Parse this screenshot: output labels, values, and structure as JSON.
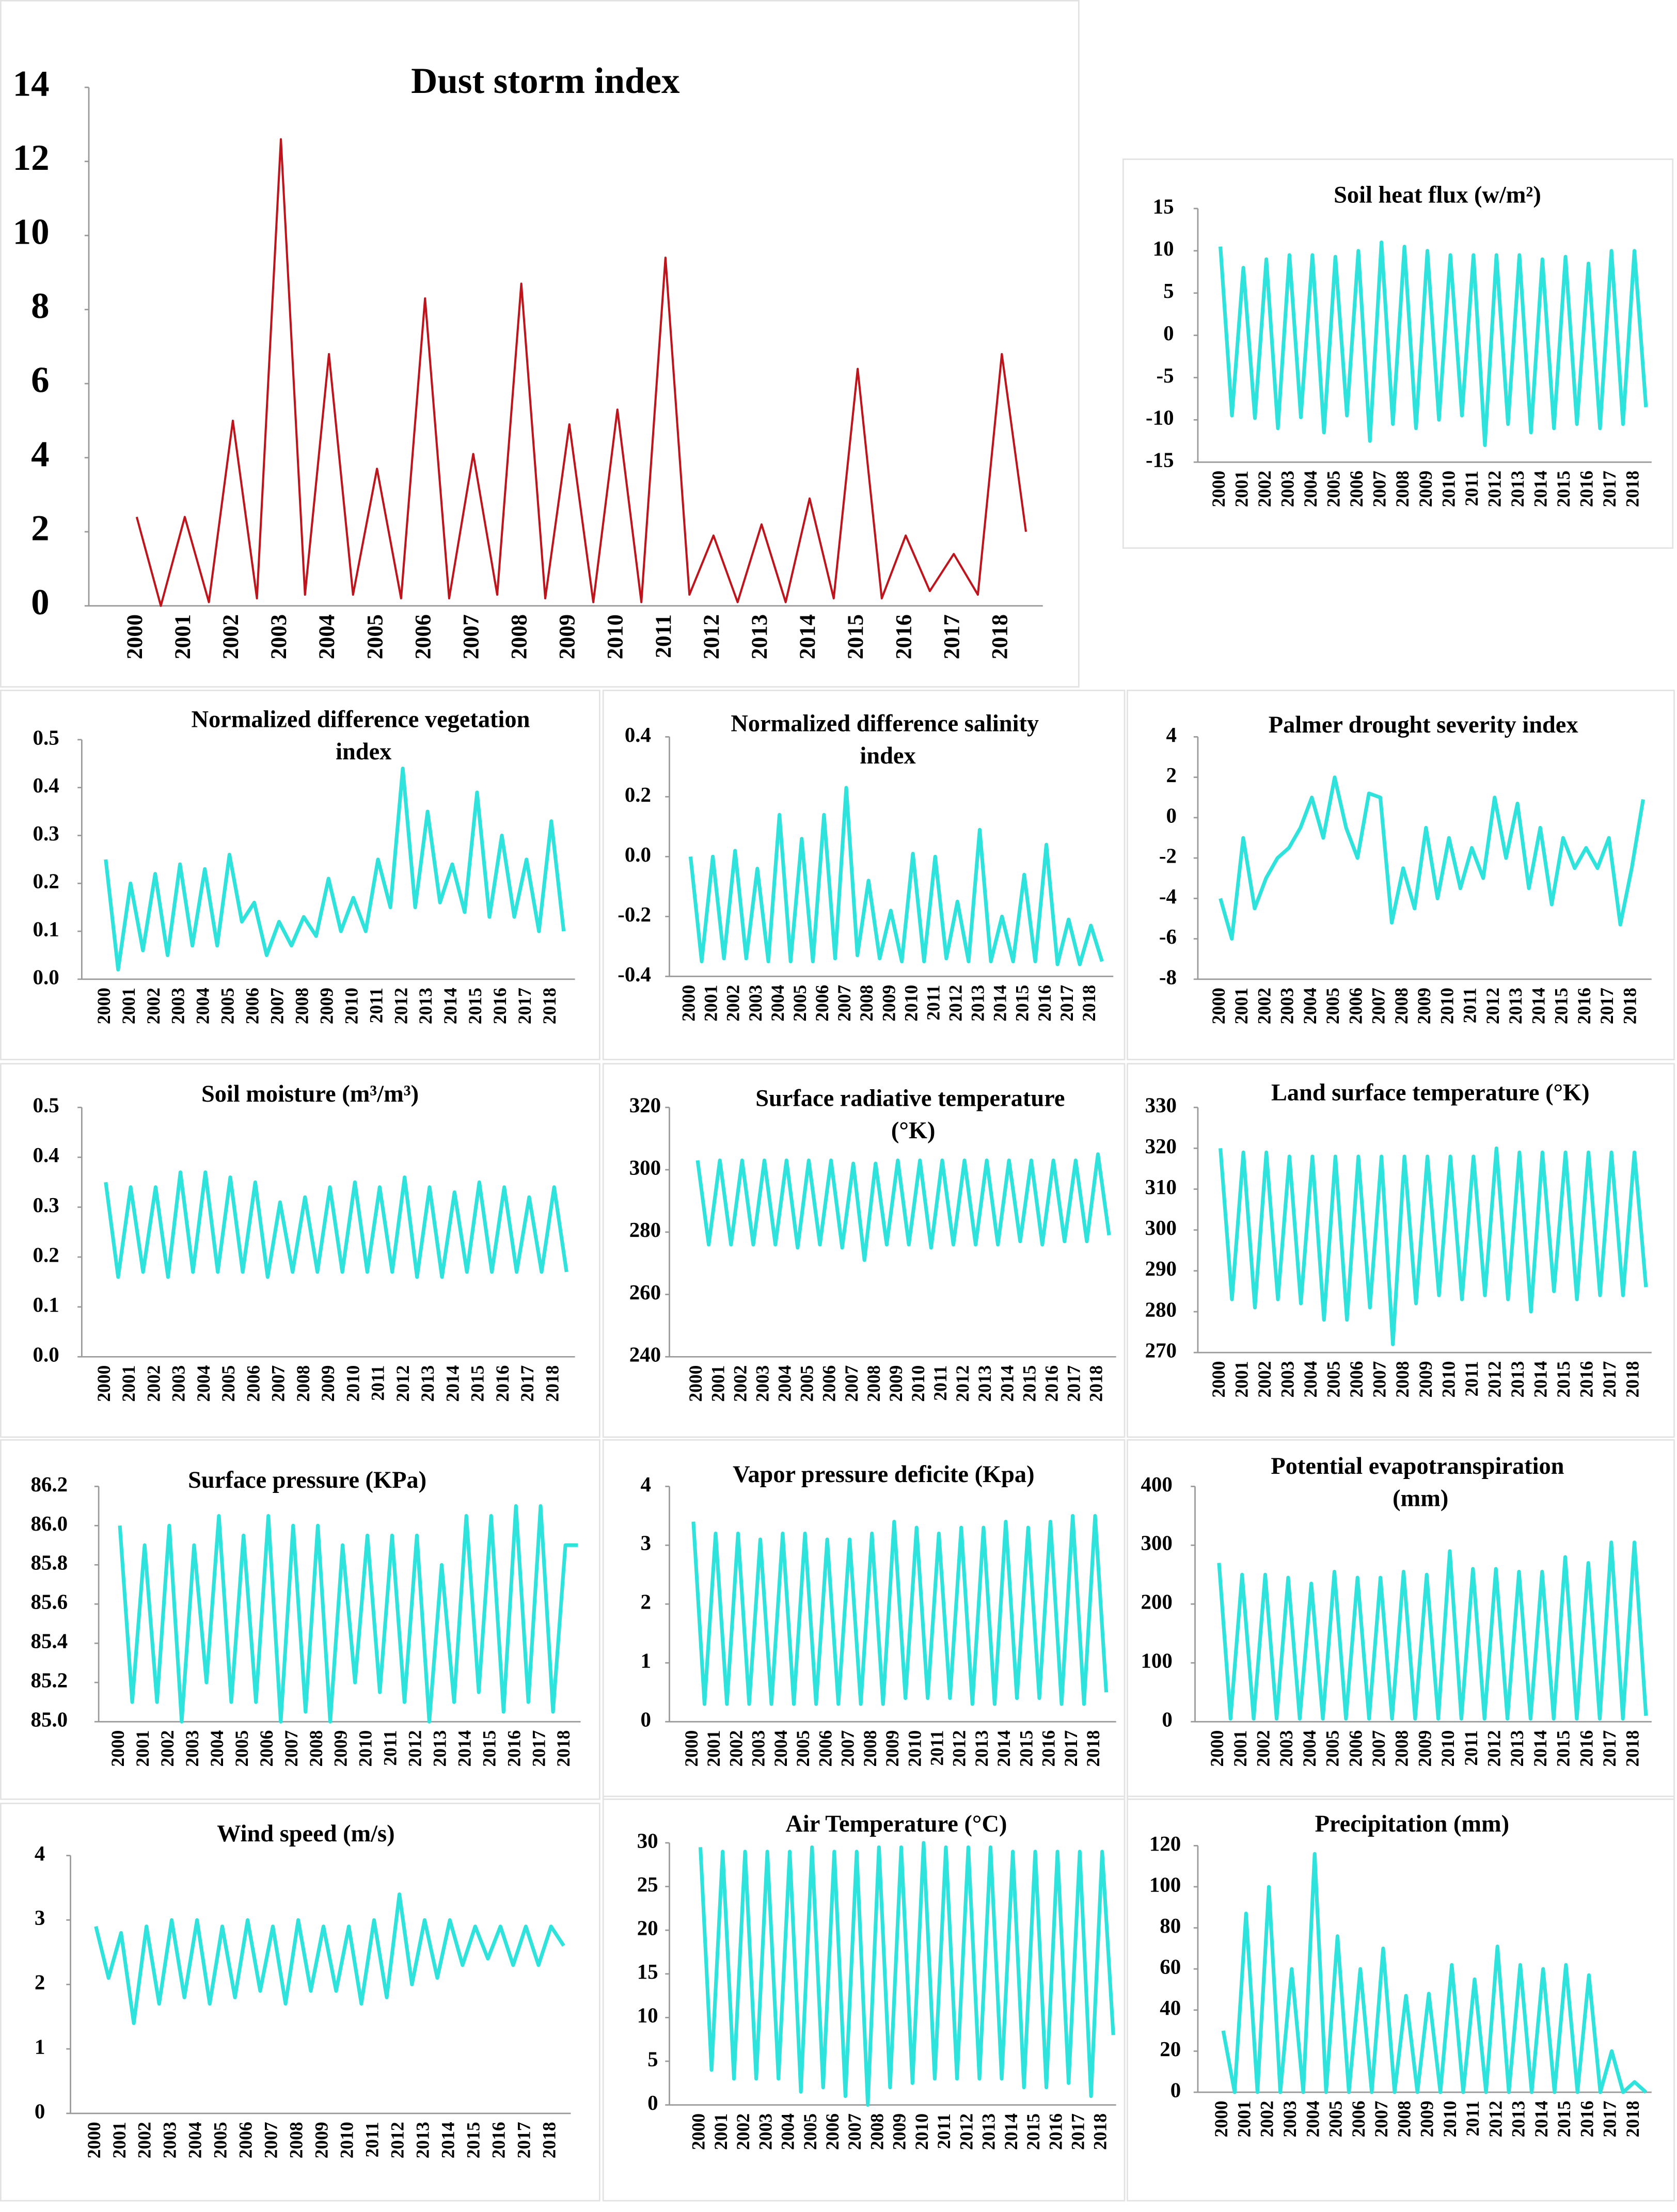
{
  "chart_data": [
    {
      "type": "line",
      "title": "Dust storm index",
      "color": "#c0141c",
      "ylim": [
        0,
        14
      ],
      "yticks": [
        0,
        2,
        4,
        6,
        8,
        10,
        12,
        14
      ],
      "categories": [
        "2000",
        null,
        "2001",
        null,
        "2002",
        null,
        "2003",
        null,
        "2004",
        null,
        "2005",
        null,
        "2006",
        null,
        "2007",
        null,
        "2008",
        null,
        "2009",
        null,
        "2010",
        null,
        "2011",
        null,
        "2012",
        null,
        "2013",
        null,
        "2014",
        null,
        "2015",
        null,
        "2016",
        null,
        "2017",
        null,
        "2018",
        null
      ],
      "values": [
        2.4,
        0,
        2.4,
        0.1,
        5,
        0.2,
        12.6,
        0.3,
        6.8,
        0.3,
        3.7,
        0.2,
        8.3,
        0.2,
        4.1,
        0.3,
        8.7,
        0.2,
        4.9,
        0.1,
        5.3,
        0.1,
        9.4,
        0.3,
        1.9,
        0.1,
        2.2,
        0.1,
        2.9,
        0.2,
        6.4,
        0.2,
        1.9,
        0.4,
        1.4,
        0.3,
        6.8,
        2
      ]
    },
    {
      "type": "line",
      "title": "Soil heat flux (w/m²)",
      "color": "#2ee3dc",
      "ylim": [
        -15,
        15
      ],
      "yticks": [
        -15,
        -10,
        -5,
        0,
        5,
        10,
        15
      ],
      "categories": [
        "2000",
        null,
        "2001",
        null,
        "2002",
        null,
        "2003",
        null,
        "2004",
        null,
        "2005",
        null,
        "2006",
        null,
        "2007",
        null,
        "2008",
        null,
        "2009",
        null,
        "2010",
        null,
        "2011",
        null,
        "2012",
        null,
        "2013",
        null,
        "2014",
        null,
        "2015",
        null,
        "2016",
        null,
        "2017",
        null,
        "2018",
        null
      ],
      "values": [
        10.5,
        -9.5,
        8,
        -9.8,
        9,
        -11,
        9.5,
        -9.7,
        9.5,
        -11.5,
        9.3,
        -9.5,
        10,
        -12.5,
        11,
        -10.5,
        10.5,
        -11,
        10,
        -10,
        9.5,
        -9.5,
        9.5,
        -13,
        9.5,
        -10.5,
        9.5,
        -11.5,
        9,
        -11,
        9.3,
        -10.5,
        8.5,
        -11,
        10,
        -10.5,
        10,
        -8.5
      ]
    },
    {
      "type": "line",
      "title": "Normalized difference vegetation index",
      "color": "#2ee3dc",
      "ylim": [
        0,
        0.5
      ],
      "yticks": [
        {
          "value": 0,
          "label": "0.0"
        },
        0.1,
        0.2,
        0.3,
        0.4,
        0.5
      ],
      "categories": [
        "2000",
        null,
        "2001",
        null,
        "2002",
        null,
        "2003",
        null,
        "2004",
        null,
        "2005",
        null,
        "2006",
        null,
        "2007",
        null,
        "2008",
        null,
        "2009",
        null,
        "2010",
        null,
        "2011",
        null,
        "2012",
        null,
        "2013",
        null,
        "2014",
        null,
        "2015",
        null,
        "2016",
        null,
        "2017",
        null,
        "2018",
        null
      ],
      "values": [
        0.25,
        0.02,
        0.2,
        0.06,
        0.22,
        0.05,
        0.24,
        0.07,
        0.23,
        0.07,
        0.26,
        0.12,
        0.16,
        0.05,
        0.12,
        0.07,
        0.13,
        0.09,
        0.21,
        0.1,
        0.17,
        0.1,
        0.25,
        0.15,
        0.44,
        0.15,
        0.35,
        0.16,
        0.24,
        0.14,
        0.39,
        0.13,
        0.3,
        0.13,
        0.25,
        0.1,
        0.33,
        0.1
      ]
    },
    {
      "type": "line",
      "title": "Normalized difference salinity index",
      "color": "#2ee3dc",
      "ylim": [
        -0.4,
        0.4
      ],
      "yticks": [
        -0.4,
        -0.2,
        {
          "value": 0,
          "label": "0.0"
        },
        0.2,
        0.4
      ],
      "categories": [
        "2000",
        null,
        "2001",
        null,
        "2002",
        null,
        "2003",
        null,
        "2004",
        null,
        "2005",
        null,
        "2006",
        null,
        "2007",
        null,
        "2008",
        null,
        "2009",
        null,
        "2010",
        null,
        "2011",
        null,
        "2012",
        null,
        "2013",
        null,
        "2014",
        null,
        "2015",
        null,
        "2016",
        null,
        "2017",
        null,
        "2018",
        null
      ],
      "values": [
        0,
        -0.35,
        0,
        -0.34,
        0.02,
        -0.34,
        -0.04,
        -0.35,
        0.14,
        -0.35,
        0.06,
        -0.35,
        0.14,
        -0.34,
        0.23,
        -0.33,
        -0.08,
        -0.34,
        -0.18,
        -0.35,
        0.01,
        -0.35,
        0,
        -0.34,
        -0.15,
        -0.35,
        0.09,
        -0.35,
        -0.2,
        -0.35,
        -0.06,
        -0.35,
        0.04,
        -0.36,
        -0.21,
        -0.36,
        -0.23,
        -0.35
      ]
    },
    {
      "type": "line",
      "title": "Palmer drought severity index",
      "color": "#2ee3dc",
      "ylim": [
        -8,
        4
      ],
      "yticks": [
        -8,
        -6,
        -4,
        -2,
        0,
        2,
        4
      ],
      "categories": [
        "2000",
        null,
        "2001",
        null,
        "2002",
        null,
        "2003",
        null,
        "2004",
        null,
        "2005",
        null,
        "2006",
        null,
        "2007",
        null,
        "2008",
        null,
        "2009",
        null,
        "2010",
        null,
        "2011",
        null,
        "2012",
        null,
        "2013",
        null,
        "2014",
        null,
        "2015",
        null,
        "2016",
        null,
        "2017",
        null,
        "2018",
        null
      ],
      "values": [
        -4,
        -6,
        -1,
        -4.5,
        -3,
        -2,
        -1.5,
        -0.5,
        1,
        -1,
        2,
        -0.5,
        -2,
        1.2,
        1,
        -5.2,
        -2.5,
        -4.5,
        -0.5,
        -4,
        -1,
        -3.5,
        -1.5,
        -3,
        1,
        -2,
        0.7,
        -3.5,
        -0.5,
        -4.3,
        -1,
        -2.5,
        -1.5,
        -2.5,
        -1,
        -5.3,
        -2.5,
        0.9
      ]
    },
    {
      "type": "line",
      "title": "Soil moisture (m³/m³)",
      "color": "#2ee3dc",
      "ylim": [
        0,
        0.5
      ],
      "yticks": [
        {
          "value": 0,
          "label": "0.0"
        },
        0.1,
        0.2,
        0.3,
        0.4,
        0.5
      ],
      "categories": [
        "2000",
        null,
        "2001",
        null,
        "2002",
        null,
        "2003",
        null,
        "2004",
        null,
        "2005",
        null,
        "2006",
        null,
        "2007",
        null,
        "2008",
        null,
        "2009",
        null,
        "2010",
        null,
        "2011",
        null,
        "2012",
        null,
        "2013",
        null,
        "2014",
        null,
        "2015",
        null,
        "2016",
        null,
        "2017",
        null,
        "2018",
        null
      ],
      "values": [
        0.35,
        0.16,
        0.34,
        0.17,
        0.34,
        0.16,
        0.37,
        0.17,
        0.37,
        0.17,
        0.36,
        0.17,
        0.35,
        0.16,
        0.31,
        0.17,
        0.32,
        0.17,
        0.34,
        0.17,
        0.35,
        0.17,
        0.34,
        0.17,
        0.36,
        0.16,
        0.34,
        0.16,
        0.33,
        0.17,
        0.35,
        0.17,
        0.34,
        0.17,
        0.32,
        0.17,
        0.34,
        0.17
      ]
    },
    {
      "type": "line",
      "title": "Surface radiative temperature (°K)",
      "color": "#2ee3dc",
      "ylim": [
        240,
        320
      ],
      "yticks": [
        240,
        260,
        280,
        300,
        320
      ],
      "categories": [
        "2000",
        null,
        "2001",
        null,
        "2002",
        null,
        "2003",
        null,
        "2004",
        null,
        "2005",
        null,
        "2006",
        null,
        "2007",
        null,
        "2008",
        null,
        "2009",
        null,
        "2010",
        null,
        "2011",
        null,
        "2012",
        null,
        "2013",
        null,
        "2014",
        null,
        "2015",
        null,
        "2016",
        null,
        "2017",
        null,
        "2018",
        null
      ],
      "values": [
        303,
        276,
        303,
        276,
        303,
        276,
        303,
        276,
        303,
        275,
        303,
        276,
        303,
        275,
        302,
        271,
        302,
        276,
        303,
        276,
        303,
        275,
        303,
        276,
        303,
        276,
        303,
        276,
        303,
        277,
        303,
        276,
        303,
        277,
        303,
        277,
        305,
        279
      ]
    },
    {
      "type": "line",
      "title": "Land surface temperature (°K)",
      "color": "#2ee3dc",
      "ylim": [
        270,
        330
      ],
      "yticks": [
        270,
        280,
        290,
        300,
        310,
        320,
        330
      ],
      "categories": [
        "2000",
        null,
        "2001",
        null,
        "2002",
        null,
        "2003",
        null,
        "2004",
        null,
        "2005",
        null,
        "2006",
        null,
        "2007",
        null,
        "2008",
        null,
        "2009",
        null,
        "2010",
        null,
        "2011",
        null,
        "2012",
        null,
        "2013",
        null,
        "2014",
        null,
        "2015",
        null,
        "2016",
        null,
        "2017",
        null,
        "2018",
        null
      ],
      "values": [
        320,
        283,
        319,
        281,
        319,
        283,
        318,
        282,
        318,
        278,
        318,
        278,
        318,
        281,
        318,
        272,
        318,
        282,
        318,
        284,
        318,
        283,
        318,
        284,
        320,
        283,
        319,
        280,
        319,
        285,
        319,
        283,
        319,
        284,
        319,
        284,
        319,
        286
      ]
    },
    {
      "type": "line",
      "title": "Surface pressure (KPa)",
      "color": "#2ee3dc",
      "ylim": [
        85,
        86.2
      ],
      "yticks": [
        {
          "value": 85,
          "label": "85.0"
        },
        85.2,
        85.4,
        85.6,
        85.8,
        {
          "value": 86,
          "label": "86.0"
        },
        86.2
      ],
      "categories": [
        "2000",
        null,
        "2001",
        null,
        "2002",
        null,
        "2003",
        null,
        "2004",
        null,
        "2005",
        null,
        "2006",
        null,
        "2007",
        null,
        "2008",
        null,
        "2009",
        null,
        "2010",
        null,
        "2011",
        null,
        "2012",
        null,
        "2013",
        null,
        "2014",
        null,
        "2015",
        null,
        "2016",
        null,
        "2017",
        null,
        "2018",
        null
      ],
      "values": [
        86,
        85.1,
        85.9,
        85.1,
        86,
        85,
        85.9,
        85.2,
        86.05,
        85.1,
        85.95,
        85.1,
        86.05,
        85,
        86,
        85.05,
        86,
        85,
        85.9,
        85.2,
        85.95,
        85.15,
        85.95,
        85.1,
        85.95,
        85,
        85.8,
        85.1,
        86.05,
        85.15,
        86.05,
        85.05,
        86.1,
        85.1,
        86.1,
        85.05,
        85.9,
        85.9
      ]
    },
    {
      "type": "line",
      "title": "Vapor pressure deficite (Kpa)",
      "color": "#2ee3dc",
      "ylim": [
        0,
        4
      ],
      "yticks": [
        0,
        1,
        2,
        3,
        4
      ],
      "categories": [
        "2000",
        null,
        "2001",
        null,
        "2002",
        null,
        "2003",
        null,
        "2004",
        null,
        "2005",
        null,
        "2006",
        null,
        "2007",
        null,
        "2008",
        null,
        "2009",
        null,
        "2010",
        null,
        "2011",
        null,
        "2012",
        null,
        "2013",
        null,
        "2014",
        null,
        "2015",
        null,
        "2016",
        null,
        "2017",
        null,
        "2018",
        null
      ],
      "values": [
        3.4,
        0.3,
        3.2,
        0.3,
        3.2,
        0.3,
        3.1,
        0.3,
        3.2,
        0.3,
        3.2,
        0.3,
        3.1,
        0.3,
        3.1,
        0.3,
        3.2,
        0.3,
        3.4,
        0.4,
        3.3,
        0.4,
        3.2,
        0.4,
        3.3,
        0.3,
        3.3,
        0.3,
        3.4,
        0.4,
        3.3,
        0.4,
        3.4,
        0.3,
        3.5,
        0.3,
        3.5,
        0.5
      ]
    },
    {
      "type": "line",
      "title": "Potential evapotranspiration (mm)",
      "color": "#2ee3dc",
      "ylim": [
        0,
        400
      ],
      "yticks": [
        0,
        100,
        200,
        300,
        400
      ],
      "categories": [
        "2000",
        null,
        "2001",
        null,
        "2002",
        null,
        "2003",
        null,
        "2004",
        null,
        "2005",
        null,
        "2006",
        null,
        "2007",
        null,
        "2008",
        null,
        "2009",
        null,
        "2010",
        null,
        "2011",
        null,
        "2012",
        null,
        "2013",
        null,
        "2014",
        null,
        "2015",
        null,
        "2016",
        null,
        "2017",
        null,
        "2018",
        null
      ],
      "values": [
        270,
        5,
        250,
        5,
        250,
        5,
        245,
        5,
        235,
        5,
        255,
        5,
        245,
        5,
        245,
        5,
        255,
        5,
        250,
        5,
        290,
        5,
        260,
        5,
        260,
        5,
        255,
        5,
        255,
        5,
        280,
        5,
        270,
        5,
        305,
        5,
        305,
        10
      ]
    },
    {
      "type": "line",
      "title": "Wind speed (m/s)",
      "color": "#2ee3dc",
      "ylim": [
        0,
        4
      ],
      "yticks": [
        0,
        1,
        2,
        3,
        4
      ],
      "categories": [
        "2000",
        null,
        "2001",
        null,
        "2002",
        null,
        "2003",
        null,
        "2004",
        null,
        "2005",
        null,
        "2006",
        null,
        "2007",
        null,
        "2008",
        null,
        "2009",
        null,
        "2010",
        null,
        "2011",
        null,
        "2012",
        null,
        "2013",
        null,
        "2014",
        null,
        "2015",
        null,
        "2016",
        null,
        "2017",
        null,
        "2018",
        null
      ],
      "values": [
        2.9,
        2.1,
        2.8,
        1.4,
        2.9,
        1.7,
        3,
        1.8,
        3,
        1.7,
        2.9,
        1.8,
        3,
        1.9,
        2.9,
        1.7,
        3,
        1.9,
        2.9,
        1.9,
        2.9,
        1.7,
        3,
        1.8,
        3.4,
        2,
        3,
        2.1,
        3,
        2.3,
        2.9,
        2.4,
        2.9,
        2.3,
        2.9,
        2.3,
        2.9,
        2.6
      ]
    },
    {
      "type": "line",
      "title": "Air Temperature (°C)",
      "color": "#2ee3dc",
      "ylim": [
        0,
        30
      ],
      "yticks": [
        0,
        5,
        10,
        15,
        20,
        25,
        30
      ],
      "categories": [
        "2000",
        null,
        "2001",
        null,
        "2002",
        null,
        "2003",
        null,
        "2004",
        null,
        "2005",
        null,
        "2006",
        null,
        "2007",
        null,
        "2008",
        null,
        "2009",
        null,
        "2010",
        null,
        "2011",
        null,
        "2012",
        null,
        "2013",
        null,
        "2014",
        null,
        "2015",
        null,
        "2016",
        null,
        "2017",
        null,
        "2018",
        null
      ],
      "values": [
        29.5,
        4,
        29,
        3,
        29,
        3,
        29,
        3,
        29,
        1.5,
        29.5,
        2,
        29,
        1,
        29,
        0,
        29.5,
        2,
        29.5,
        2.5,
        30,
        3,
        29.5,
        3,
        29.5,
        3,
        29.5,
        3,
        29,
        2,
        29,
        2,
        29,
        2.5,
        29,
        1,
        29,
        8
      ]
    },
    {
      "type": "line",
      "title": "Precipitation (mm)",
      "color": "#2ee3dc",
      "ylim": [
        0,
        120
      ],
      "yticks": [
        0,
        20,
        40,
        60,
        80,
        100,
        120
      ],
      "categories": [
        "2000",
        null,
        "2001",
        null,
        "2002",
        null,
        "2003",
        null,
        "2004",
        null,
        "2005",
        null,
        "2006",
        null,
        "2007",
        null,
        "2008",
        null,
        "2009",
        null,
        "2010",
        null,
        "2011",
        null,
        "2012",
        null,
        "2013",
        null,
        "2014",
        null,
        "2015",
        null,
        "2016",
        null,
        "2017",
        null,
        "2018",
        null
      ],
      "values": [
        30,
        0,
        87,
        0,
        100,
        0,
        60,
        0,
        116,
        0,
        76,
        0,
        60,
        0,
        70,
        0,
        47,
        0,
        48,
        0,
        62,
        0,
        55,
        0,
        71,
        0,
        62,
        0,
        60,
        0,
        62,
        0,
        57,
        0,
        20,
        0,
        5,
        0
      ]
    }
  ]
}
